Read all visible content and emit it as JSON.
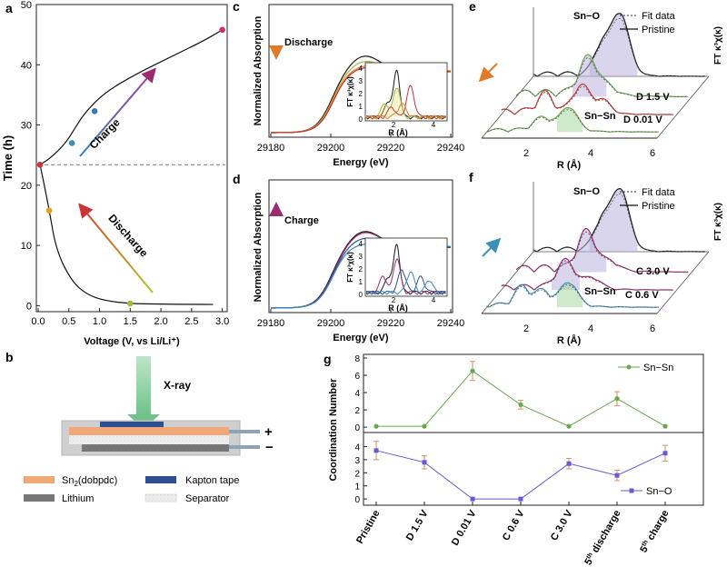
{
  "panels": {
    "a": {
      "letter": "a"
    },
    "b": {
      "letter": "b"
    },
    "c": {
      "letter": "c"
    },
    "d": {
      "letter": "d"
    },
    "e": {
      "letter": "e"
    },
    "f": {
      "letter": "f"
    },
    "g": {
      "letter": "g"
    }
  },
  "colors": {
    "black": "#1a1a1a",
    "red": "#cc3333",
    "green": "#6aa84f",
    "orange": "#e07b2a",
    "yellowgreen": "#a8b83a",
    "blue": "#3a8fb7",
    "purple": "#9b2c6e",
    "navy": "#2d4f8f",
    "violet": "#6a5acd",
    "lavender": "#b9b3dc",
    "mint": "#a8d8a0",
    "grey": "#888888",
    "kapton": "#2d4f8f",
    "sn_layer": "#f0a878",
    "lithium": "#777777",
    "separator": "#eaeaea"
  },
  "chart_data": [
    {
      "id": "a",
      "type": "line",
      "xlabel": "Voltage (V, vs Li/Li⁺)",
      "ylabel": "Time (h)",
      "xlim": [
        0,
        3.05
      ],
      "ylim": [
        -1,
        50
      ],
      "xticks": [
        "0.0",
        "0.5",
        "1.0",
        "1.5",
        "2.0",
        "2.5",
        "3.0"
      ],
      "yticks": [
        "0",
        "10",
        "20",
        "30",
        "40",
        "50"
      ],
      "series": [
        {
          "x": [
            0.03,
            0.1,
            0.18,
            0.3,
            0.55,
            0.8,
            1.1,
            1.5,
            2.0,
            2.5,
            2.85
          ],
          "y": [
            23.4,
            20,
            15.8,
            9,
            4,
            1.8,
            0.8,
            0.35,
            0.25,
            0.2,
            0.2
          ]
        },
        {
          "x": [
            0.03,
            0.2,
            0.45,
            0.6,
            0.78,
            1.1,
            1.6,
            2.2,
            2.7,
            3.0
          ],
          "y": [
            23.4,
            24.5,
            27,
            29.5,
            32.3,
            35.5,
            38.5,
            41.5,
            44,
            45.8
          ]
        }
      ],
      "markers": [
        {
          "x": 0.03,
          "y": 23.4,
          "color": "#cc3333"
        },
        {
          "x": 0.18,
          "y": 15.8,
          "color": "#e0a020"
        },
        {
          "x": 1.5,
          "y": 0.35,
          "color": "#a8b83a"
        },
        {
          "x": 0.55,
          "y": 27,
          "color": "#3a8fb7"
        },
        {
          "x": 0.92,
          "y": 32.3,
          "color": "#3a78b7"
        },
        {
          "x": 3.0,
          "y": 45.8,
          "color": "#c8336e"
        }
      ],
      "dashed_y": 23.4,
      "annotations": [
        "Charge",
        "Discharge"
      ]
    },
    {
      "id": "c",
      "type": "line",
      "xlabel": "Energy (eV)",
      "ylabel": "Normalized Absorption",
      "xlim": [
        29180,
        29240
      ],
      "xticks": [
        "29180",
        "29200",
        "29220",
        "29240"
      ],
      "annotation": "Discharge",
      "inset": {
        "xlabel": "R (Å)",
        "ylabel": "FT κ³χ(κ)",
        "yticks": [
          "0",
          "1",
          "2",
          "3",
          "4"
        ],
        "xticks": [
          "2",
          "4"
        ]
      }
    },
    {
      "id": "d",
      "type": "line",
      "xlabel": "Energy (eV)",
      "ylabel": "Normalized Absorption",
      "xlim": [
        29180,
        29240
      ],
      "xticks": [
        "29180",
        "29200",
        "29220",
        "29240"
      ],
      "annotation": "Charge",
      "inset": {
        "xlabel": "R (Å)",
        "ylabel": "FT κ³χ(κ)",
        "yticks": [
          "0",
          "1",
          "2",
          "3",
          "4"
        ],
        "xticks": [
          "2",
          "4"
        ]
      }
    },
    {
      "id": "e",
      "type": "line",
      "xlabel": "R (Å)",
      "ylabel": "FT κ³χ(κ)",
      "xticks": [
        "2",
        "4",
        "6"
      ],
      "legend": [
        "Fit data",
        "Pristine"
      ],
      "labels": [
        "Sn−O",
        "D 1.5 V",
        "Sn−Sn",
        "D 0.01 V"
      ]
    },
    {
      "id": "f",
      "type": "line",
      "xlabel": "R (Å)",
      "ylabel": "FT κ³χ(κ)",
      "xticks": [
        "2",
        "4",
        "6"
      ],
      "legend": [
        "Fit data",
        "Pristine"
      ],
      "labels": [
        "Sn−O",
        "C 3.0 V",
        "Sn−Sn",
        "C 0.6 V"
      ]
    },
    {
      "id": "g",
      "type": "line",
      "ylabel": "Coordination Number",
      "categories": [
        "Pristine",
        "D 1.5 V",
        "D 0.01 V",
        "C 0.6 V",
        "C 3.0 V",
        "5th discharge",
        "5th charge"
      ],
      "series": [
        {
          "name": "Sn−Sn",
          "values": [
            0.1,
            0.1,
            6.5,
            2.6,
            0.1,
            3.3,
            0.1
          ],
          "errors": [
            0,
            0,
            1.1,
            0.5,
            0,
            0.8,
            0
          ],
          "color": "#6aa84f",
          "ylim": [
            -0.2,
            8
          ],
          "yticks": [
            "0",
            "2",
            "4",
            "6",
            "8"
          ]
        },
        {
          "name": "Sn−O",
          "values": [
            3.7,
            2.8,
            0,
            0,
            2.7,
            1.8,
            3.5
          ],
          "errors": [
            0.7,
            0.5,
            0,
            0,
            0.4,
            0.4,
            0.6
          ],
          "color": "#6a5acd",
          "ylim": [
            -0.2,
            4.8
          ],
          "yticks": [
            "0",
            "1",
            "2",
            "3",
            "4"
          ]
        }
      ],
      "category_labels": [
        {
          "text": "Pristine"
        },
        {
          "text": "D 1.5 V"
        },
        {
          "text": "D 0.01 V"
        },
        {
          "text": "C 0.6 V"
        },
        {
          "text": "C 3.0 V"
        },
        {
          "text": "5",
          "sup": "th",
          "rest": " discharge"
        },
        {
          "text": "5",
          "sup": "th",
          "rest": " charge"
        }
      ]
    }
  ],
  "schematic": {
    "beam_label": "X-ray",
    "plus": "+",
    "minus": "−",
    "legend": [
      {
        "pre": "Sn",
        "sub": "2",
        "post": "(dobpdc)",
        "swatch": "sn_layer"
      },
      {
        "pre": "Kapton tape",
        "sub": "",
        "post": "",
        "swatch": "kapton"
      },
      {
        "pre": "Lithium",
        "sub": "",
        "post": "",
        "swatch": "lithium"
      },
      {
        "pre": "Separator",
        "sub": "",
        "post": "",
        "swatch": "separator"
      }
    ]
  }
}
